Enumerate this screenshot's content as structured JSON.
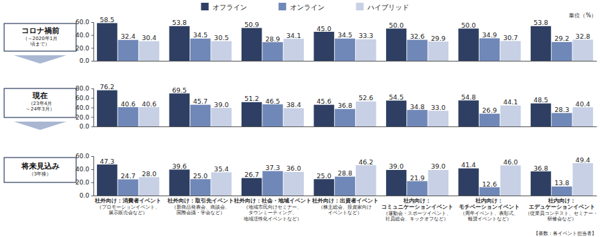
{
  "unit": "単位（%）",
  "note": "【基数：各イベント担当者】",
  "chart_data": [
    {
      "type": "bar",
      "title": "コロナ禍前",
      "subtitle": "（～2020年1月\n頃まで）",
      "categories": [
        null,
        null,
        null,
        null,
        null,
        null,
        null
      ],
      "series": [
        {
          "name": "オフライン",
          "color": "#2e3f63",
          "values": [
            58.5,
            53.8,
            50.9,
            45.0,
            50.0,
            50.0,
            53.8
          ],
          "value_labels": [
            "58.5",
            "53.8",
            "50.9",
            "45.0",
            "50.0",
            "50.0",
            "53.8"
          ]
        },
        {
          "name": "オンライン",
          "color": "#7088b8",
          "values": [
            32.4,
            34.5,
            28.9,
            34.5,
            32.6,
            34.9,
            29.2
          ],
          "value_labels": [
            "32.4",
            "34.5",
            "28.9",
            "34.5",
            "32.6",
            "34.9",
            "29.2"
          ]
        },
        {
          "name": "ハイブリッド",
          "color": "#c7d0e4",
          "values": [
            30.4,
            30.5,
            34.1,
            33.3,
            29.9,
            30.7,
            32.8
          ],
          "value_labels": [
            "30.4",
            "30.5",
            "34.1",
            "33.3",
            "29.9",
            "30.7",
            "32.8"
          ]
        }
      ],
      "ylim": [
        0,
        60
      ],
      "yticks": [
        {
          "value": 0,
          "label": "0.0"
        },
        {
          "value": 20,
          "label": "20.0"
        },
        {
          "value": 40,
          "label": "40.0"
        },
        {
          "value": 60,
          "label": "60.0"
        }
      ],
      "grid": false,
      "data_labels": true,
      "legend": "top"
    },
    {
      "type": "bar",
      "title": "現在",
      "subtitle": "（23年4月\n～24年3月）",
      "categories": [
        null,
        null,
        null,
        null,
        null,
        null,
        null
      ],
      "series": [
        {
          "color": "#2e3f63",
          "values": [
            76.2,
            69.5,
            51.2,
            45.6,
            54.5,
            54.8,
            48.5
          ],
          "value_labels": [
            "76.2",
            "69.5",
            "51.2",
            "45.6",
            "54.5",
            "54.8",
            "48.5"
          ]
        },
        {
          "color": "#7088b8",
          "values": [
            40.6,
            45.7,
            46.5,
            36.8,
            34.8,
            26.9,
            28.3
          ],
          "value_labels": [
            "40.6",
            "45.7",
            "46.5",
            "36.8",
            "34.8",
            "26.9",
            "28.3"
          ]
        },
        {
          "color": "#c7d0e4",
          "values": [
            40.6,
            39.0,
            38.4,
            52.6,
            33.0,
            44.1,
            40.4
          ],
          "value_labels": [
            "40.6",
            "39.0",
            "38.4",
            "52.6",
            "33.0",
            "44.1",
            "40.4"
          ]
        }
      ],
      "ylim": [
        0,
        80
      ],
      "yticks": [
        {
          "value": 0,
          "label": "0.0"
        },
        {
          "value": 20,
          "label": "20.0"
        },
        {
          "value": 40,
          "label": "40.0"
        },
        {
          "value": 60,
          "label": "60.0"
        },
        {
          "value": 80,
          "label": "80.0"
        }
      ],
      "grid": false,
      "data_labels": true
    },
    {
      "type": "bar",
      "title": "将来見込み",
      "subtitle": "（3年後）",
      "categories": [
        "社外向け：消費者イベント\n（プロモーションイベント、\n展示販売会など）",
        "社外向け：取引先イベント\n（新商品発表会、商談会、\n国際会議・学会など）",
        "社外向け：社会・地域イベント\n（地域市民向けセミナー、\nタウンミーティング、\n地域活性化イベントなど）",
        "社外向け：出資者イベント\n（株主総会、投資家向け\nイベントなど）",
        "社内向け：\nコミュニケーションイベント\n（運動会・スポーツイベント、\n社員総会、キックオフなど）",
        "社内向け：\nモチベーションイベント\n（周年イベント、表彰式、\n報奨イベントなど）",
        "社内向け：\nエデュケーションイベント\n（従業員コンテスト、セミナー・\n研修会など）"
      ],
      "series": [
        {
          "color": "#2e3f63",
          "values": [
            47.3,
            39.6,
            26.7,
            25.0,
            39.0,
            41.4,
            36.8
          ],
          "value_labels": [
            "47.3",
            "39.6",
            "26.7",
            "25.0",
            "39.0",
            "41.4",
            "36.8"
          ]
        },
        {
          "color": "#7088b8",
          "values": [
            24.7,
            25.0,
            37.3,
            28.8,
            21.9,
            12.6,
            13.8
          ],
          "value_labels": [
            "24.7",
            "25.0",
            "37.3",
            "28.8",
            "21.9",
            "12.6",
            "13.8"
          ]
        },
        {
          "color": "#c7d0e4",
          "values": [
            28.0,
            35.4,
            36.0,
            46.2,
            39.0,
            46.0,
            49.4
          ],
          "value_labels": [
            "28.0",
            "35.4",
            "36.0",
            "46.2",
            "39.0",
            "46.0",
            "49.4"
          ]
        }
      ],
      "ylim": [
        0,
        60
      ],
      "yticks": [
        {
          "value": 0,
          "label": "0.0"
        },
        {
          "value": 20,
          "label": "20.0"
        },
        {
          "value": 40,
          "label": "40.0"
        },
        {
          "value": 60,
          "label": "60.0"
        }
      ],
      "grid": false,
      "data_labels": true
    }
  ]
}
